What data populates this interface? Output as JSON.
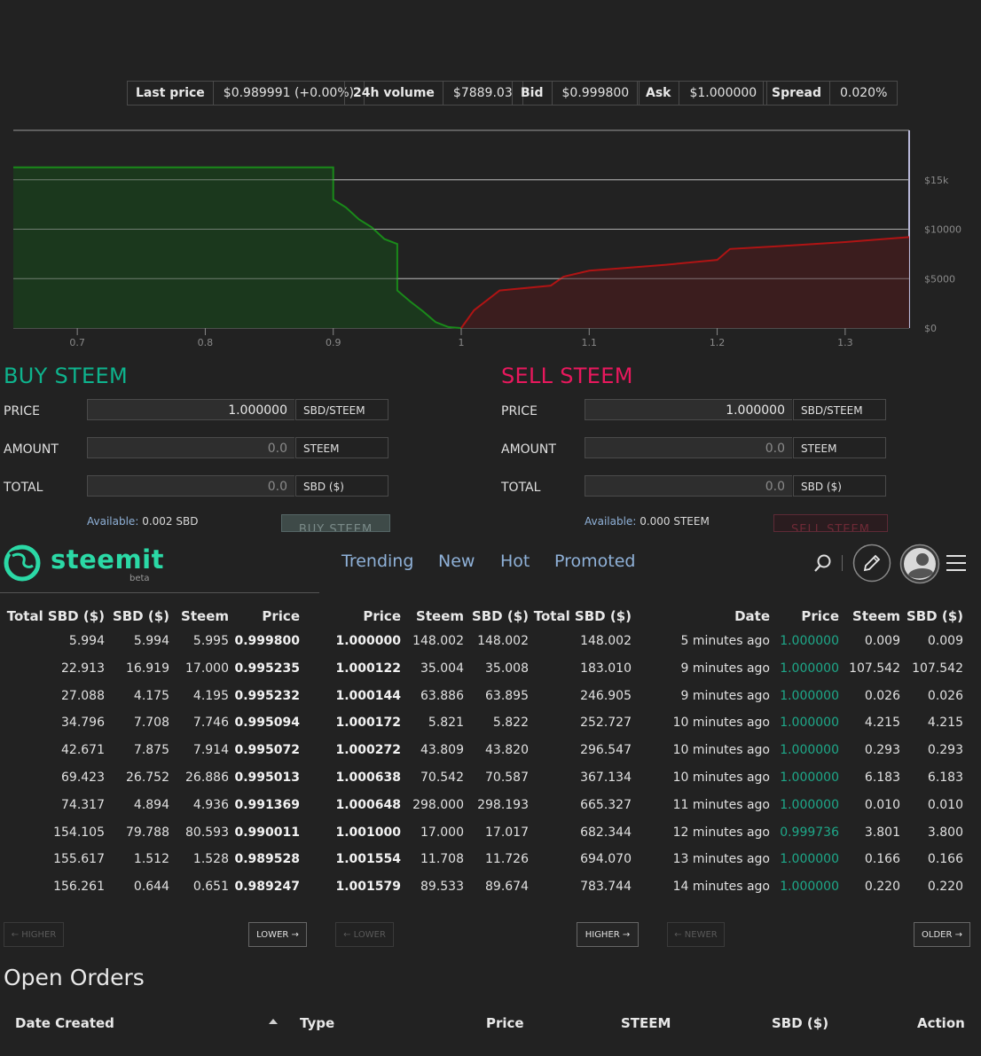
{
  "ticker": [
    {
      "label": "Last price",
      "value": "$0.989991 (+0.00%)",
      "left": 143
    },
    {
      "label": "24h volume",
      "value": "$7889.03",
      "left": 388
    },
    {
      "label": "Bid",
      "value": "$0.999800",
      "left": 577
    },
    {
      "label": "Ask",
      "value": "$1.000000",
      "left": 718
    },
    {
      "label": "Spread",
      "value": "0.020%",
      "left": 860
    }
  ],
  "chart_data": {
    "type": "area",
    "x_ticks": [
      "0.7",
      "0.8",
      "0.9",
      "1",
      "1.1",
      "1.2",
      "1.3"
    ],
    "y_ticks": [
      "$0",
      "$5000",
      "$10000",
      "$15k"
    ],
    "xlim": [
      0.65,
      1.35
    ],
    "ylim": [
      0,
      20000
    ],
    "series": [
      {
        "color": "#1a8a1a",
        "points": [
          [
            0.65,
            16254
          ],
          [
            0.9,
            16254
          ],
          [
            0.9,
            13000
          ],
          [
            0.91,
            12200
          ],
          [
            0.92,
            11000
          ],
          [
            0.93,
            10200
          ],
          [
            0.94,
            9000
          ],
          [
            0.95,
            8500
          ],
          [
            0.95,
            3800
          ],
          [
            0.96,
            2700
          ],
          [
            0.97,
            1700
          ],
          [
            0.98,
            600
          ],
          [
            0.99,
            100
          ],
          [
            0.9998,
            0
          ]
        ]
      },
      {
        "color": "#b01414",
        "points": [
          [
            1.0,
            0
          ],
          [
            1.01,
            1800
          ],
          [
            1.03,
            3800
          ],
          [
            1.07,
            4300
          ],
          [
            1.08,
            5200
          ],
          [
            1.1,
            5800
          ],
          [
            1.13,
            6100
          ],
          [
            1.16,
            6400
          ],
          [
            1.2,
            6900
          ],
          [
            1.21,
            8000
          ],
          [
            1.25,
            8300
          ],
          [
            1.3,
            8700
          ],
          [
            1.35,
            9200
          ]
        ]
      }
    ]
  },
  "buy": {
    "title": "BUY STEEM",
    "price_label": "PRICE",
    "price_value": "1.000000",
    "price_unit": "SBD/STEEM",
    "amount_label": "AMOUNT",
    "amount_placeholder": "0.0",
    "amount_unit": "STEEM",
    "total_label": "TOTAL",
    "total_placeholder": "0.0",
    "total_unit": "SBD ($)",
    "available_label": "Available:",
    "available_value": "0.002 SBD",
    "button": "BUY STEEM"
  },
  "sell": {
    "title": "SELL STEEM",
    "price_label": "PRICE",
    "price_value": "1.000000",
    "price_unit": "SBD/STEEM",
    "amount_label": "AMOUNT",
    "amount_placeholder": "0.0",
    "amount_unit": "STEEM",
    "total_label": "TOTAL",
    "total_placeholder": "0.0",
    "total_unit": "SBD ($)",
    "available_label": "Available:",
    "available_value": "0.000 STEEM",
    "button": "SELL STEEM"
  },
  "header": {
    "logo": "steemit",
    "beta": "beta",
    "nav": [
      "Trending",
      "New",
      "Hot",
      "Promoted"
    ],
    "accent": "#2bd9a6"
  },
  "buy_orders": {
    "headers": [
      "Total SBD ($)",
      "SBD ($)",
      "Steem",
      "Price"
    ],
    "rows": [
      [
        "5.994",
        "5.994",
        "5.995",
        "0.999800"
      ],
      [
        "22.913",
        "16.919",
        "17.000",
        "0.995235"
      ],
      [
        "27.088",
        "4.175",
        "4.195",
        "0.995232"
      ],
      [
        "34.796",
        "7.708",
        "7.746",
        "0.995094"
      ],
      [
        "42.671",
        "7.875",
        "7.914",
        "0.995072"
      ],
      [
        "69.423",
        "26.752",
        "26.886",
        "0.995013"
      ],
      [
        "74.317",
        "4.894",
        "4.936",
        "0.991369"
      ],
      [
        "154.105",
        "79.788",
        "80.593",
        "0.990011"
      ],
      [
        "155.617",
        "1.512",
        "1.528",
        "0.989528"
      ],
      [
        "156.261",
        "0.644",
        "0.651",
        "0.989247"
      ]
    ],
    "prev": "← HIGHER",
    "next": "LOWER →"
  },
  "sell_orders": {
    "headers": [
      "Price",
      "Steem",
      "SBD ($)",
      "Total SBD ($)"
    ],
    "rows": [
      [
        "1.000000",
        "148.002",
        "148.002",
        "148.002"
      ],
      [
        "1.000122",
        "35.004",
        "35.008",
        "183.010"
      ],
      [
        "1.000144",
        "63.886",
        "63.895",
        "246.905"
      ],
      [
        "1.000172",
        "5.821",
        "5.822",
        "252.727"
      ],
      [
        "1.000272",
        "43.809",
        "43.820",
        "296.547"
      ],
      [
        "1.000638",
        "70.542",
        "70.587",
        "367.134"
      ],
      [
        "1.000648",
        "298.000",
        "298.193",
        "665.327"
      ],
      [
        "1.001000",
        "17.000",
        "17.017",
        "682.344"
      ],
      [
        "1.001554",
        "11.708",
        "11.726",
        "694.070"
      ],
      [
        "1.001579",
        "89.533",
        "89.674",
        "783.744"
      ]
    ],
    "prev": "← LOWER",
    "next": "HIGHER →"
  },
  "trade_history": {
    "headers": [
      "Date",
      "Price",
      "Steem",
      "SBD ($)"
    ],
    "rows": [
      [
        "5 minutes ago",
        "1.000000",
        "0.009",
        "0.009"
      ],
      [
        "9 minutes ago",
        "1.000000",
        "107.542",
        "107.542"
      ],
      [
        "9 minutes ago",
        "1.000000",
        "0.026",
        "0.026"
      ],
      [
        "10 minutes ago",
        "1.000000",
        "4.215",
        "4.215"
      ],
      [
        "10 minutes ago",
        "1.000000",
        "0.293",
        "0.293"
      ],
      [
        "10 minutes ago",
        "1.000000",
        "6.183",
        "6.183"
      ],
      [
        "11 minutes ago",
        "1.000000",
        "0.010",
        "0.010"
      ],
      [
        "12 minutes ago",
        "0.999736",
        "3.801",
        "3.800"
      ],
      [
        "13 minutes ago",
        "1.000000",
        "0.166",
        "0.166"
      ],
      [
        "14 minutes ago",
        "1.000000",
        "0.220",
        "0.220"
      ]
    ],
    "prev": "← NEWER",
    "next": "OLDER →"
  },
  "open_orders": {
    "title": "Open Orders",
    "headers": [
      "Date Created",
      "Type",
      "Price",
      "STEEM",
      "SBD ($)",
      "Action"
    ]
  }
}
